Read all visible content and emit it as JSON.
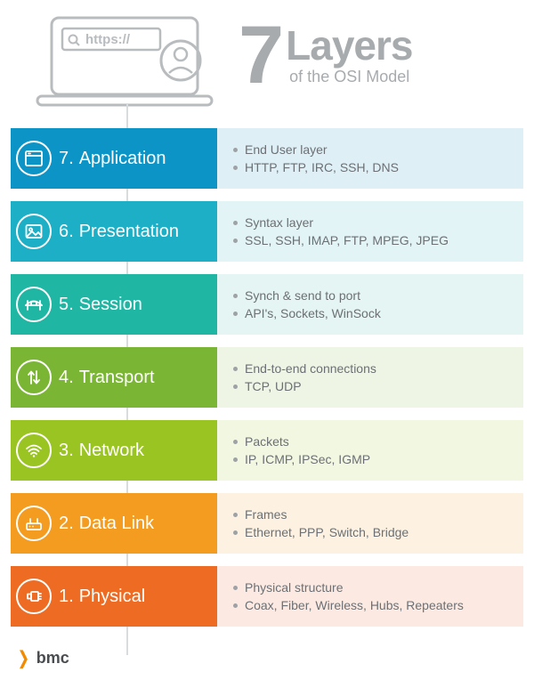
{
  "header": {
    "url_text": "https://",
    "big_number": "7",
    "title_main": "Layers",
    "title_sub": "of the OSI Model"
  },
  "colors": {
    "title_gray": "#a7abae",
    "bullet_text": "#6c7074",
    "bullet_dot": "#9ea2a5",
    "vline": "#d9dcdd",
    "bmc_orange": "#f38b00",
    "bmc_text": "#4a4d50"
  },
  "layers": [
    {
      "number": "7.",
      "name": "Application",
      "left_color": "#0d94c6",
      "right_color": "#def0f6",
      "desc": "End User layer",
      "proto": "HTTP, FTP, IRC, SSH, DNS",
      "icon": "browser"
    },
    {
      "number": "6.",
      "name": "Presentation",
      "left_color": "#1cafc6",
      "right_color": "#e2f4f6",
      "desc": "Syntax layer",
      "proto": "SSL, SSH, IMAP, FTP, MPEG, JPEG",
      "icon": "image"
    },
    {
      "number": "5.",
      "name": "Session",
      "left_color": "#1fb6a4",
      "right_color": "#e4f5f3",
      "desc": "Synch & send to port",
      "proto": "API's, Sockets, WinSock",
      "icon": "bridge"
    },
    {
      "number": "4.",
      "name": "Transport",
      "left_color": "#7ab534",
      "right_color": "#eef5e5",
      "desc": "End-to-end connections",
      "proto": "TCP, UDP",
      "icon": "arrows"
    },
    {
      "number": "3.",
      "name": "Network",
      "left_color": "#9ac422",
      "right_color": "#f2f7e1",
      "desc": "Packets",
      "proto": "IP, ICMP, IPSec, IGMP",
      "icon": "wifi"
    },
    {
      "number": "2.",
      "name": "Data Link",
      "left_color": "#f39c1f",
      "right_color": "#fdf2e2",
      "desc": "Frames",
      "proto": "Ethernet, PPP, Switch, Bridge",
      "icon": "router"
    },
    {
      "number": "1.",
      "name": "Physical",
      "left_color": "#ee6b23",
      "right_color": "#fceae2",
      "desc": "Physical structure",
      "proto": "Coax, Fiber, Wireless, Hubs, Repeaters",
      "icon": "cable"
    }
  ],
  "footer": {
    "brand": "bmc"
  }
}
